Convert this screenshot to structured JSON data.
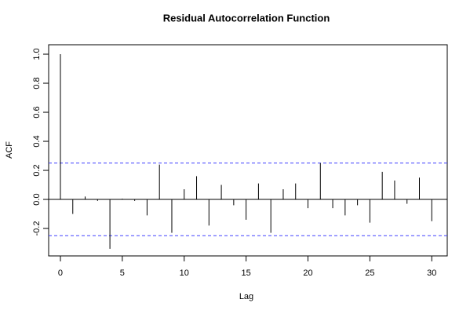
{
  "chart_data": {
    "type": "acf",
    "title": "Residual Autocorrelation Function",
    "x_label": "Lag",
    "y_label": "ACF",
    "x": [
      0,
      1,
      2,
      3,
      4,
      5,
      6,
      7,
      8,
      9,
      10,
      11,
      12,
      13,
      14,
      15,
      16,
      17,
      18,
      19,
      20,
      21,
      22,
      23,
      24,
      25,
      26,
      27,
      28,
      29,
      30
    ],
    "values": [
      1.0,
      -0.1,
      0.02,
      -0.01,
      -0.34,
      0.005,
      -0.01,
      -0.11,
      0.24,
      -0.23,
      0.07,
      0.16,
      -0.18,
      0.1,
      -0.04,
      -0.14,
      0.11,
      -0.23,
      0.07,
      0.11,
      -0.06,
      0.25,
      -0.06,
      -0.11,
      -0.04,
      -0.16,
      0.19,
      0.13,
      -0.03,
      0.15,
      -0.15
    ],
    "color": "#000000",
    "ci_bounds": [
      -0.25,
      0.25
    ],
    "ci_color": "#4040ff",
    "xlim": [
      -0.95,
      31.25
    ],
    "ylim": [
      -0.389,
      1.065
    ],
    "xticks": [
      0,
      5,
      10,
      15,
      20,
      25,
      30
    ],
    "yticks": [
      -0.2,
      {
        "value": 0,
        "label": "0.0"
      },
      0.2,
      0.4,
      0.6,
      0.8,
      {
        "value": 1,
        "label": "1.0"
      }
    ]
  }
}
